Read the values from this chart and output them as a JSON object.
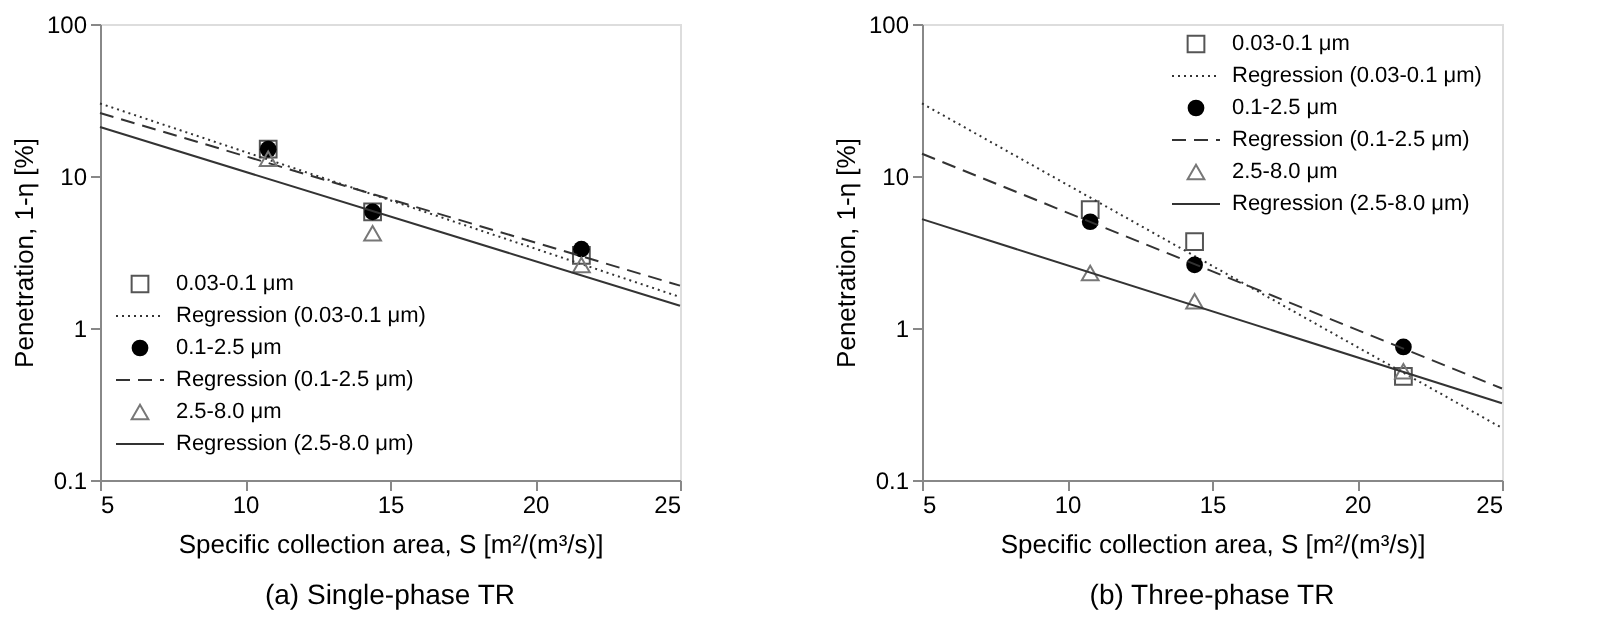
{
  "chart_data": [
    {
      "type": "scatter",
      "title": "(a) Single-phase TR",
      "xlabel": "Specific collection area, S [m²/(m³/s)]",
      "ylabel": "Penetration, 1-η [%]",
      "log": "y",
      "xlim": [
        5,
        25
      ],
      "xticks": [
        5,
        10,
        15,
        20,
        25
      ],
      "ylim": [
        0.1,
        100
      ],
      "yticks": [
        0.1,
        1,
        10,
        100
      ],
      "legend": "bottom left",
      "series": [
        {
          "name": "0.03-0.1 μm",
          "marker": "square",
          "color": "#555555",
          "x": [
            10.8,
            14.4,
            21.6
          ],
          "values": [
            15,
            5.8,
            3.0
          ]
        },
        {
          "name": "Regression (0.03-0.1 μm)",
          "type": "line",
          "line_style": "dotted",
          "color": "#333333",
          "x": [
            5,
            25
          ],
          "values": [
            30,
            1.6
          ]
        },
        {
          "name": "0.1-2.5 μm",
          "marker": "circle",
          "color": "#000000",
          "x": [
            10.8,
            14.4,
            21.6
          ],
          "values": [
            15,
            5.8,
            3.3
          ]
        },
        {
          "name": "Regression (0.1-2.5 μm)",
          "type": "line",
          "line_style": "dashed",
          "color": "#333333",
          "x": [
            5,
            25
          ],
          "values": [
            26,
            1.9
          ]
        },
        {
          "name": "2.5-8.0 μm",
          "marker": "triangle",
          "color": "#777777",
          "x": [
            10.8,
            14.4,
            21.6
          ],
          "values": [
            13,
            4.2,
            2.6
          ]
        },
        {
          "name": "Regression (2.5-8.0 μm)",
          "type": "line",
          "line_style": "solid",
          "color": "#333333",
          "x": [
            5,
            25
          ],
          "values": [
            21,
            1.4
          ]
        }
      ]
    },
    {
      "type": "scatter",
      "title": "(b) Three-phase TR",
      "xlabel": "Specific collection area, S [m²/(m³/s)]",
      "ylabel": "Penetration, 1-η [%]",
      "log": "y",
      "xlim": [
        5,
        25
      ],
      "xticks": [
        5,
        10,
        15,
        20,
        25
      ],
      "ylim": [
        0.1,
        100
      ],
      "yticks": [
        0.1,
        1,
        10,
        100
      ],
      "legend": "top right",
      "series": [
        {
          "name": "0.03-0.1 μm",
          "marker": "square",
          "color": "#555555",
          "x": [
            10.8,
            14.4,
            21.6
          ],
          "values": [
            6.0,
            3.7,
            0.48
          ]
        },
        {
          "name": "Regression (0.03-0.1 μm)",
          "type": "line",
          "line_style": "dotted",
          "color": "#333333",
          "x": [
            5,
            25
          ],
          "values": [
            30,
            0.22
          ]
        },
        {
          "name": "0.1-2.5 μm",
          "marker": "circle",
          "color": "#000000",
          "x": [
            10.8,
            14.4,
            21.6
          ],
          "values": [
            5.0,
            2.6,
            0.75
          ]
        },
        {
          "name": "Regression (0.1-2.5 μm)",
          "type": "line",
          "line_style": "dashed",
          "color": "#333333",
          "x": [
            5,
            25
          ],
          "values": [
            14,
            0.4
          ]
        },
        {
          "name": "2.5-8.0 μm",
          "marker": "triangle",
          "color": "#777777",
          "x": [
            10.8,
            14.4,
            21.6
          ],
          "values": [
            2.3,
            1.5,
            0.52
          ]
        },
        {
          "name": "Regression (2.5-8.0 μm)",
          "type": "line",
          "line_style": "solid",
          "color": "#333333",
          "x": [
            5,
            25
          ],
          "values": [
            5.2,
            0.32
          ]
        }
      ]
    }
  ]
}
